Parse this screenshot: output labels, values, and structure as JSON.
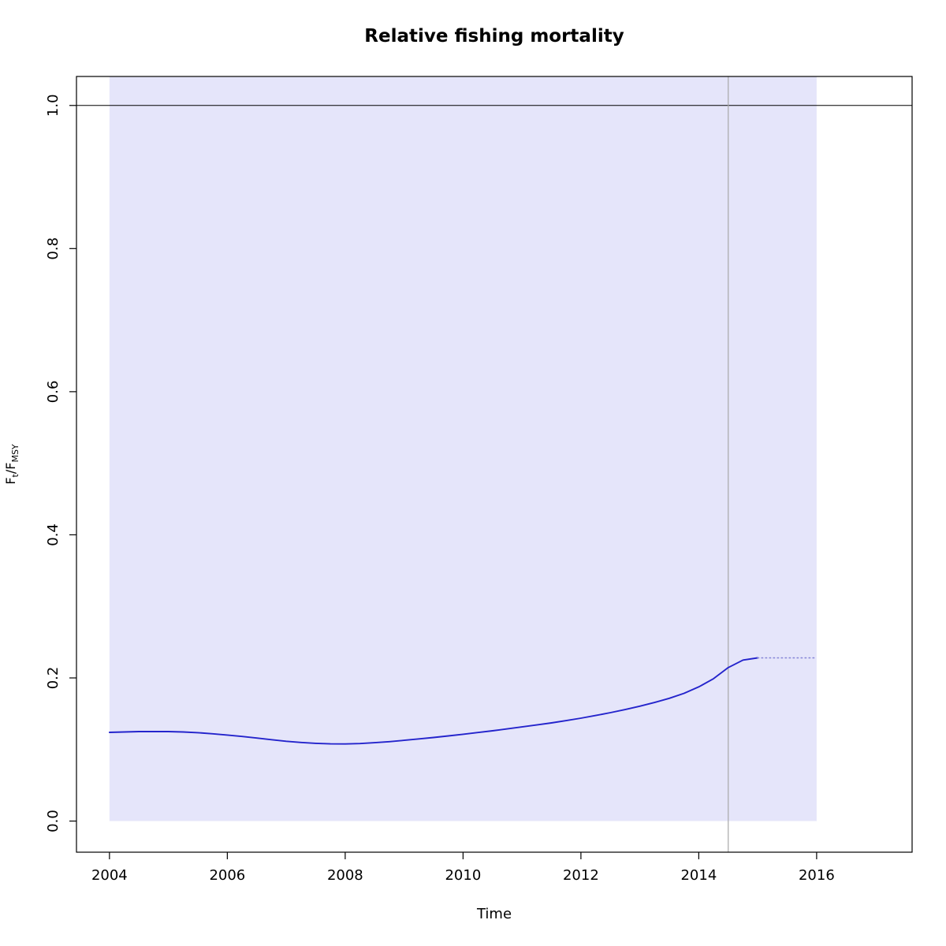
{
  "figure": {
    "background": "#ffffff"
  },
  "chart_data": {
    "type": "line",
    "title": "Relative fishing mortality",
    "xlabel": "Time",
    "ylabel": "Ft/FMSY",
    "ylabel_parts": {
      "base1": "F",
      "sub1": "t",
      "sep": "/",
      "base2": "F",
      "sub2": "MSY"
    },
    "xlim": [
      2003.44,
      2017.62
    ],
    "ylim": [
      -0.0435,
      1.0405
    ],
    "xticks": [
      "2004",
      "2006",
      "2008",
      "2010",
      "2012",
      "2014",
      "2016"
    ],
    "xtick_values": [
      2004,
      2006,
      2008,
      2010,
      2012,
      2014,
      2016
    ],
    "yticks": [
      "0.0",
      "0.2",
      "0.4",
      "0.6",
      "0.8",
      "1.0"
    ],
    "ytick_values": [
      0.0,
      0.2,
      0.4,
      0.6,
      0.8,
      1.0
    ],
    "grid": false,
    "legend": "none",
    "reference_line_y": 1.0,
    "vline_x": 2014.5,
    "ci_region": {
      "x0": 2004,
      "x1": 2016,
      "y0": 0.0,
      "clip_top": true,
      "fill": "#e5e5fa"
    },
    "colors": {
      "estimate_line": "#2424cc",
      "forecast_line": "#8585d6",
      "region_fill": "#e5e5fa",
      "vline": "#a8a8a8",
      "reference_line": "#000000",
      "axis": "#000000"
    },
    "series": [
      {
        "name": "estimate",
        "style": "solid",
        "color": "#2424cc",
        "x": [
          2004,
          2004.25,
          2004.5,
          2004.75,
          2005,
          2005.25,
          2005.5,
          2005.75,
          2006,
          2006.25,
          2006.5,
          2006.75,
          2007,
          2007.25,
          2007.5,
          2007.75,
          2008,
          2008.25,
          2008.5,
          2008.75,
          2009,
          2009.25,
          2009.5,
          2009.75,
          2010,
          2010.25,
          2010.5,
          2010.75,
          2011,
          2011.25,
          2011.5,
          2011.75,
          2012,
          2012.25,
          2012.5,
          2012.75,
          2013,
          2013.25,
          2013.5,
          2013.75,
          2014,
          2014.25,
          2014.5,
          2014.75,
          2015
        ],
        "y": [
          0.124,
          0.1245,
          0.125,
          0.125,
          0.125,
          0.1245,
          0.1235,
          0.122,
          0.1202,
          0.1182,
          0.116,
          0.1137,
          0.1115,
          0.1098,
          0.1086,
          0.1079,
          0.1078,
          0.1083,
          0.1095,
          0.111,
          0.1128,
          0.1148,
          0.1168,
          0.119,
          0.1213,
          0.1237,
          0.1262,
          0.1288,
          0.1315,
          0.1343,
          0.1372,
          0.1404,
          0.1438,
          0.1475,
          0.1515,
          0.1558,
          0.1605,
          0.1657,
          0.1715,
          0.1785,
          0.1875,
          0.199,
          0.2145,
          0.225,
          0.228
        ]
      },
      {
        "name": "forecast",
        "style": "dotted",
        "color": "#8585d6",
        "x": [
          2015,
          2016
        ],
        "y": [
          0.228,
          0.228
        ]
      }
    ]
  }
}
